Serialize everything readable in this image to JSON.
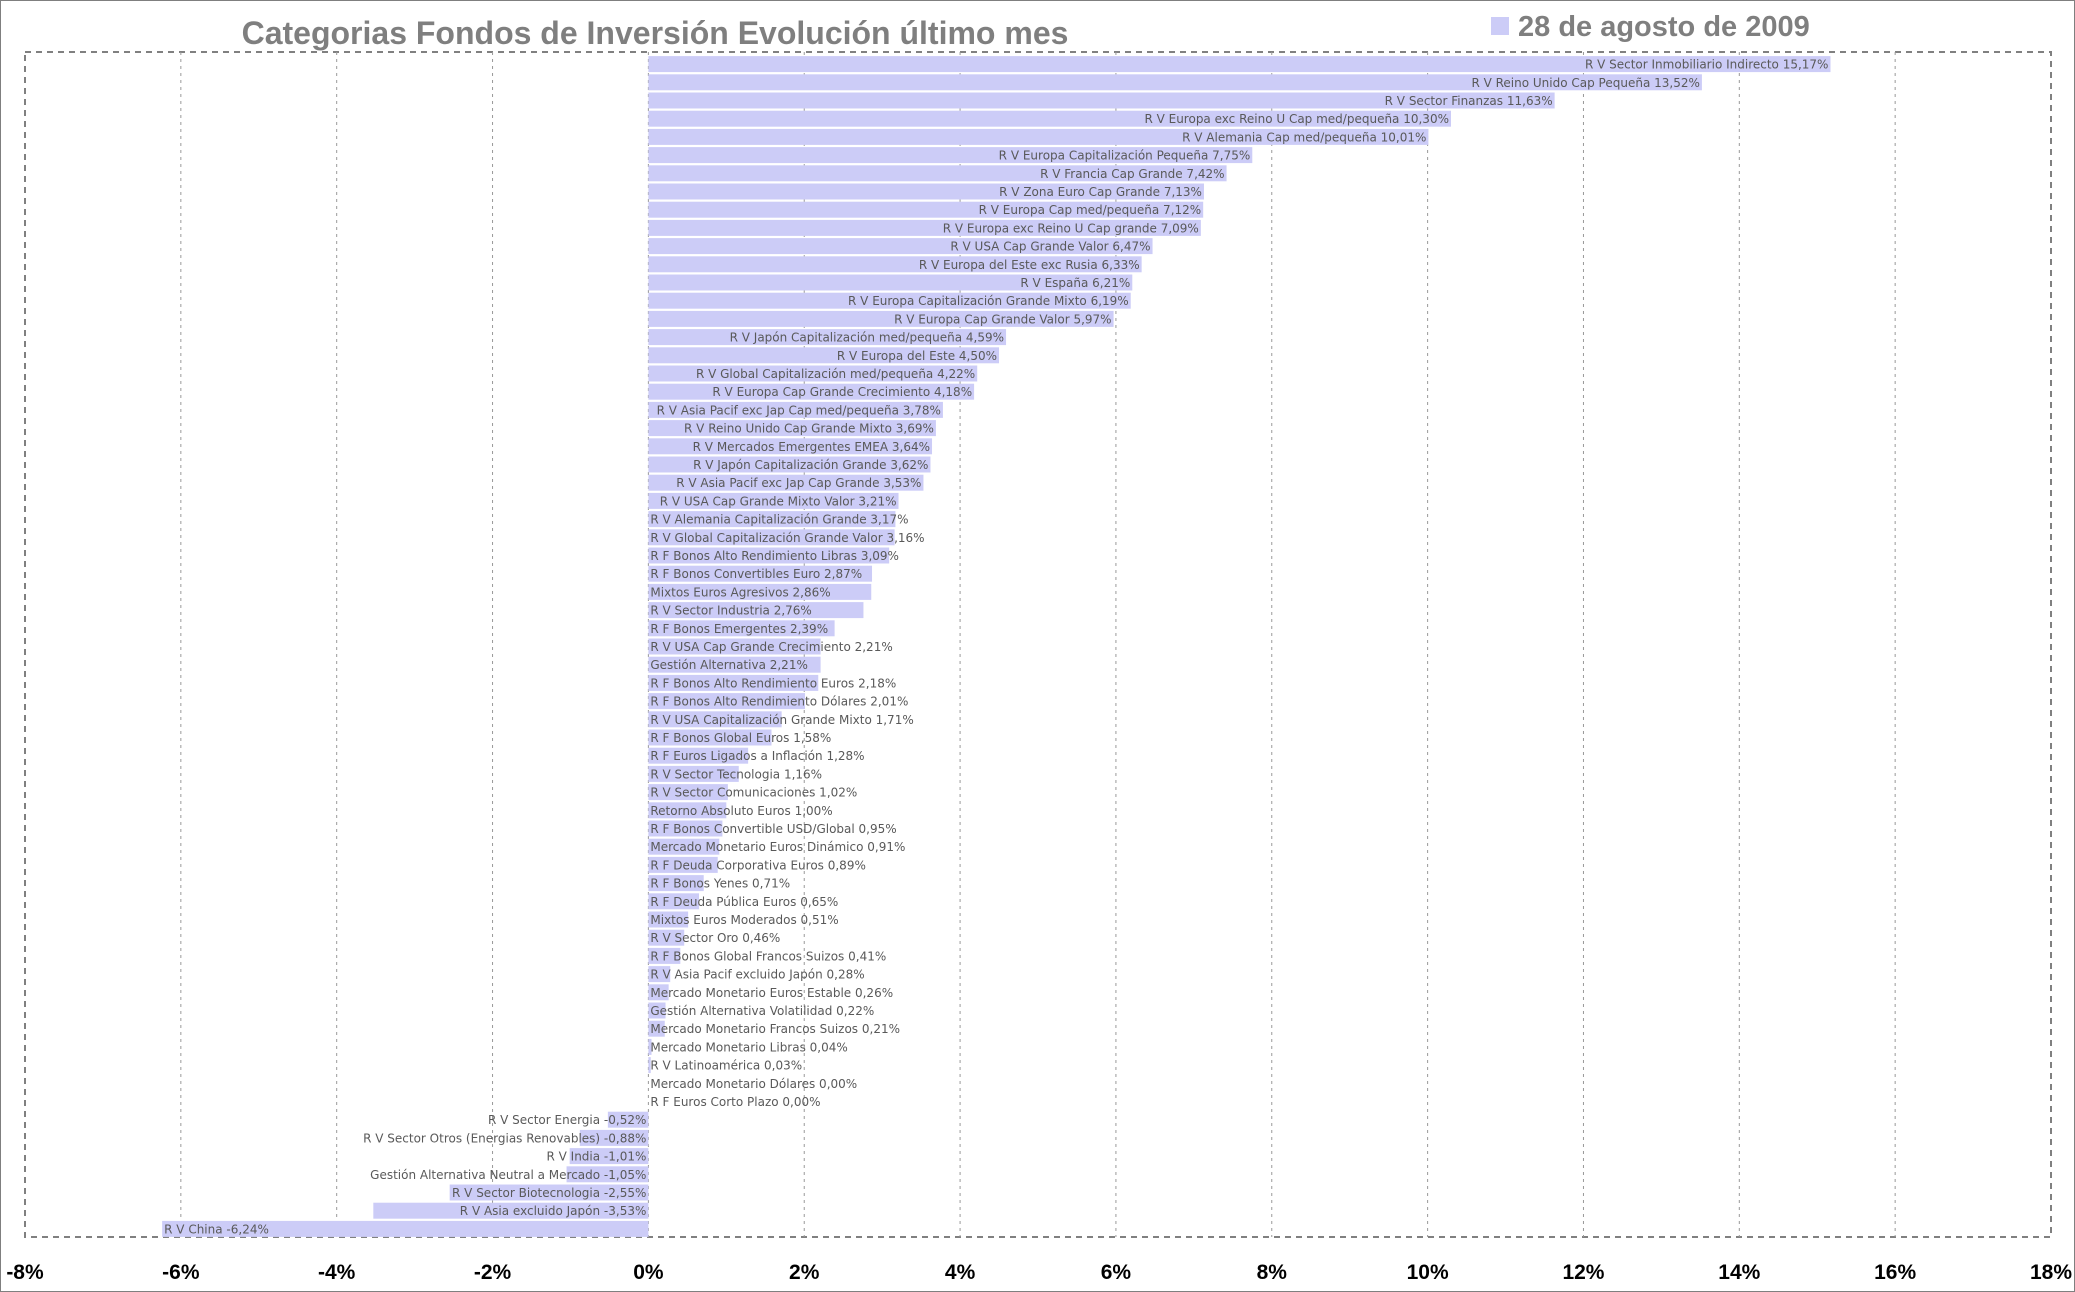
{
  "chart_data": {
    "type": "bar",
    "orientation": "horizontal",
    "title": "Categorias Fondos de Inversión Evolución último mes",
    "legend_position": "top-right",
    "series": [
      {
        "name": "28 de agosto de 2009",
        "color": "#ccccf7"
      }
    ],
    "xlim": [
      -8,
      18
    ],
    "x_ticks": [
      "-8%",
      "-6%",
      "-4%",
      "-2%",
      "0%",
      "2%",
      "4%",
      "6%",
      "8%",
      "10%",
      "12%",
      "14%",
      "16%",
      "18%"
    ],
    "grid": true,
    "colors": {
      "bar": "#ccccf7",
      "text": "#7f7f7f",
      "grid": "#999999"
    },
    "bars": [
      {
        "label": "R V Sector Inmobiliario Indirecto 15,17%",
        "value": 15.17
      },
      {
        "label": "R V Reino Unido Cap Pequeña 13,52%",
        "value": 13.52
      },
      {
        "label": "R V Sector Finanzas 11,63%",
        "value": 11.63
      },
      {
        "label": "R V Europa exc Reino U Cap med/pequeña 10,30%",
        "value": 10.3
      },
      {
        "label": "R V Alemania Cap med/pequeña 10,01%",
        "value": 10.01
      },
      {
        "label": "R V Europa Capitalización Pequeña 7,75%",
        "value": 7.75
      },
      {
        "label": "R V Francia Cap Grande 7,42%",
        "value": 7.42
      },
      {
        "label": "R V Zona Euro Cap Grande 7,13%",
        "value": 7.13
      },
      {
        "label": "R V Europa Cap med/pequeña 7,12%",
        "value": 7.12
      },
      {
        "label": "R V Europa exc Reino U Cap grande 7,09%",
        "value": 7.09
      },
      {
        "label": "R V USA Cap Grande Valor 6,47%",
        "value": 6.47
      },
      {
        "label": "R V Europa del Este exc Rusia 6,33%",
        "value": 6.33
      },
      {
        "label": "R V España 6,21%",
        "value": 6.21
      },
      {
        "label": "R V Europa Capitalización Grande Mixto 6,19%",
        "value": 6.19
      },
      {
        "label": "R V Europa Cap Grande Valor 5,97%",
        "value": 5.97
      },
      {
        "label": "R V Japón Capitalización med/pequeña 4,59%",
        "value": 4.59
      },
      {
        "label": "R V Europa del Este 4,50%",
        "value": 4.5
      },
      {
        "label": "R V Global Capitalización med/pequeña 4,22%",
        "value": 4.22
      },
      {
        "label": "R V Europa Cap Grande Crecimiento 4,18%",
        "value": 4.18
      },
      {
        "label": "R V Asia Pacif exc Jap Cap med/pequeña 3,78%",
        "value": 3.78
      },
      {
        "label": "R V Reino Unido Cap Grande Mixto 3,69%",
        "value": 3.69
      },
      {
        "label": "R V Mercados Emergentes EMEA 3,64%",
        "value": 3.64
      },
      {
        "label": "R V Japón Capitalización Grande 3,62%",
        "value": 3.62
      },
      {
        "label": "R V Asia Pacif exc Jap Cap Grande 3,53%",
        "value": 3.53
      },
      {
        "label": "R V USA Cap Grande Mixto Valor 3,21%",
        "value": 3.21
      },
      {
        "label": "R V Alemania Capitalización Grande 3,17%",
        "value": 3.17
      },
      {
        "label": "R V Global Capitalización Grande Valor 3,16%",
        "value": 3.16
      },
      {
        "label": "R F Bonos Alto Rendimiento Libras 3,09%",
        "value": 3.09
      },
      {
        "label": "R F Bonos Convertibles Euro 2,87%",
        "value": 2.87
      },
      {
        "label": "Mixtos Euros Agresivos 2,86%",
        "value": 2.86
      },
      {
        "label": "R V Sector Industria 2,76%",
        "value": 2.76
      },
      {
        "label": "R F Bonos Emergentes 2,39%",
        "value": 2.39
      },
      {
        "label": "R V USA Cap Grande Crecimiento 2,21%",
        "value": 2.21
      },
      {
        "label": "Gestión Alternativa 2,21%",
        "value": 2.21
      },
      {
        "label": "R F Bonos Alto Rendimiento Euros 2,18%",
        "value": 2.18
      },
      {
        "label": "R F Bonos Alto Rendimiento Dólares 2,01%",
        "value": 2.01
      },
      {
        "label": "R V USA Capitalización Grande Mixto 1,71%",
        "value": 1.71
      },
      {
        "label": "R F Bonos Global Euros 1,58%",
        "value": 1.58
      },
      {
        "label": "R F Euros Ligados a Inflación 1,28%",
        "value": 1.28
      },
      {
        "label": "R V Sector Tecnologia 1,16%",
        "value": 1.16
      },
      {
        "label": "R V Sector Comunicaciones 1,02%",
        "value": 1.02
      },
      {
        "label": "Retorno Absoluto Euros 1,00%",
        "value": 1.0
      },
      {
        "label": "R F Bonos Convertible USD/Global 0,95%",
        "value": 0.95
      },
      {
        "label": "Mercado Monetario Euros Dinámico 0,91%",
        "value": 0.91
      },
      {
        "label": "R F Deuda Corporativa Euros 0,89%",
        "value": 0.89
      },
      {
        "label": "R F Bonos Yenes 0,71%",
        "value": 0.71
      },
      {
        "label": "R F Deuda Pública Euros 0,65%",
        "value": 0.65
      },
      {
        "label": "Mixtos Euros Moderados 0,51%",
        "value": 0.51
      },
      {
        "label": "R V Sector Oro 0,46%",
        "value": 0.46
      },
      {
        "label": "R F Bonos Global Francos Suizos 0,41%",
        "value": 0.41
      },
      {
        "label": "R V Asia Pacif excluido Japón 0,28%",
        "value": 0.28
      },
      {
        "label": "Mercado Monetario Euros Estable 0,26%",
        "value": 0.26
      },
      {
        "label": "Gestión Alternativa Volatilidad 0,22%",
        "value": 0.22
      },
      {
        "label": "Mercado Monetario Francos Suizos 0,21%",
        "value": 0.21
      },
      {
        "label": "Mercado Monetario Libras 0,04%",
        "value": 0.04
      },
      {
        "label": "R V Latinoamérica 0,03%",
        "value": 0.03
      },
      {
        "label": "Mercado Monetario Dólares 0,00%",
        "value": 0.0
      },
      {
        "label": "R F Euros Corto Plazo 0,00%",
        "value": 0.0
      },
      {
        "label": "R V Sector Energia -0,52%",
        "value": -0.52
      },
      {
        "label": "R V Sector Otros (Energias Renovables) -0,88%",
        "value": -0.88
      },
      {
        "label": "R V India -1,01%",
        "value": -1.01
      },
      {
        "label": "Gestión Alternativa Neutral a Mercado -1,05%",
        "value": -1.05
      },
      {
        "label": "R V Sector Biotecnologia -2,55%",
        "value": -2.55
      },
      {
        "label": "R V Asia excluido Japón -3,53%",
        "value": -3.53
      },
      {
        "label": "R V China -6,24%",
        "value": -6.24
      }
    ]
  }
}
